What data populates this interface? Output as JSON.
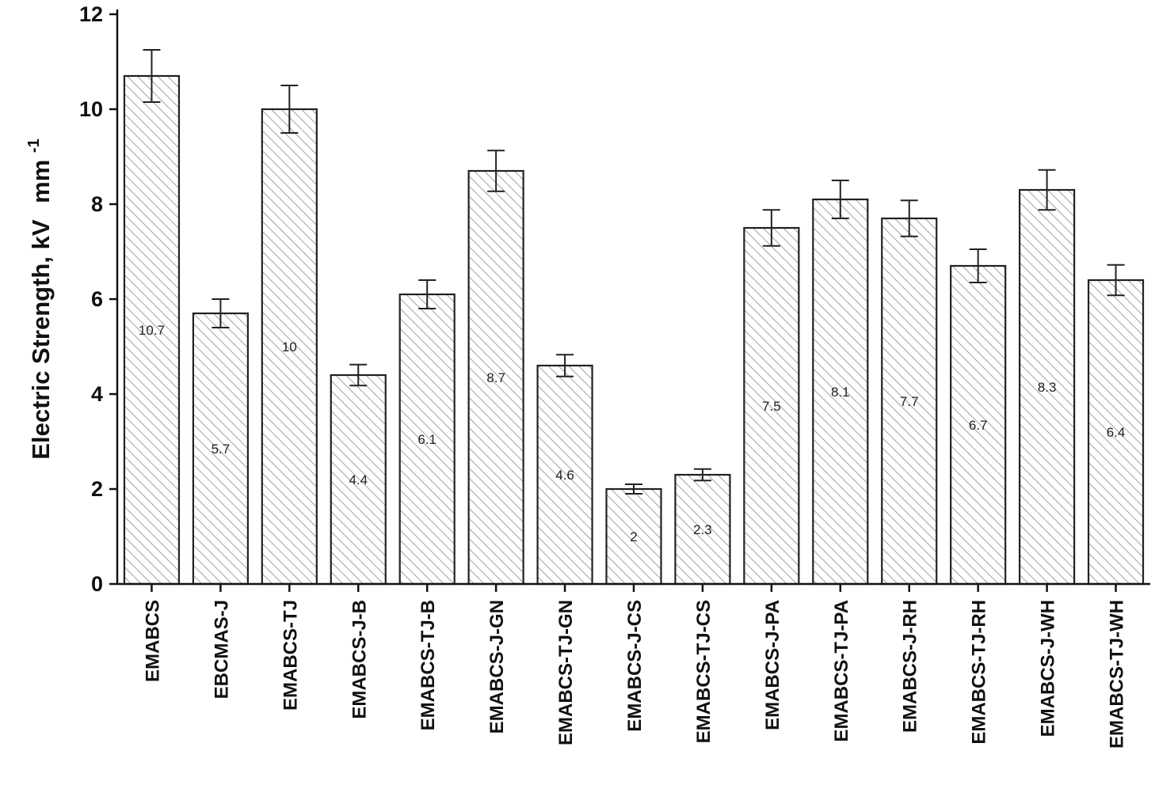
{
  "chart_data": {
    "type": "bar",
    "title": "",
    "xlabel": "",
    "ylabel": "Electric Strength, kV",
    "ylabel_unit": "mm",
    "ylabel_unit_exponent": "-1",
    "ylim": [
      0,
      12
    ],
    "yticks": [
      0,
      2,
      4,
      6,
      8,
      10,
      12
    ],
    "grid": false,
    "legend": "none",
    "bar_fill": "hatched",
    "bar_stroke_color": "#222222",
    "hatch_color": "#8a8a8a",
    "categories": [
      "EMABCS",
      "EBCMAS-J",
      "EMABCS-TJ",
      "EMABCS-J-B",
      "EMABCS-TJ-B",
      "EMABCS-J-GN",
      "EMABCS-TJ-GN",
      "EMABCS-J-CS",
      "EMABCS-TJ-CS",
      "EMABCS-J-PA",
      "EMABCS-TJ-PA",
      "EMABCS-J-RH",
      "EMABCS-TJ-RH",
      "EMABCS-J-WH",
      "EMABCS-TJ-WH"
    ],
    "values": [
      10.7,
      5.7,
      10,
      4.4,
      6.1,
      8.7,
      4.6,
      2,
      2.3,
      7.5,
      8.1,
      7.7,
      6.7,
      8.3,
      6.4
    ],
    "value_labels": [
      "10.7",
      "5.7",
      "10",
      "4.4",
      "6.1",
      "8.7",
      "4.6",
      "2",
      "2.3",
      "7.5",
      "8.1",
      "7.7",
      "6.7",
      "8.3",
      "6.4"
    ],
    "errors": [
      0.55,
      0.3,
      0.5,
      0.22,
      0.3,
      0.43,
      0.23,
      0.1,
      0.12,
      0.38,
      0.4,
      0.38,
      0.35,
      0.42,
      0.32
    ]
  }
}
